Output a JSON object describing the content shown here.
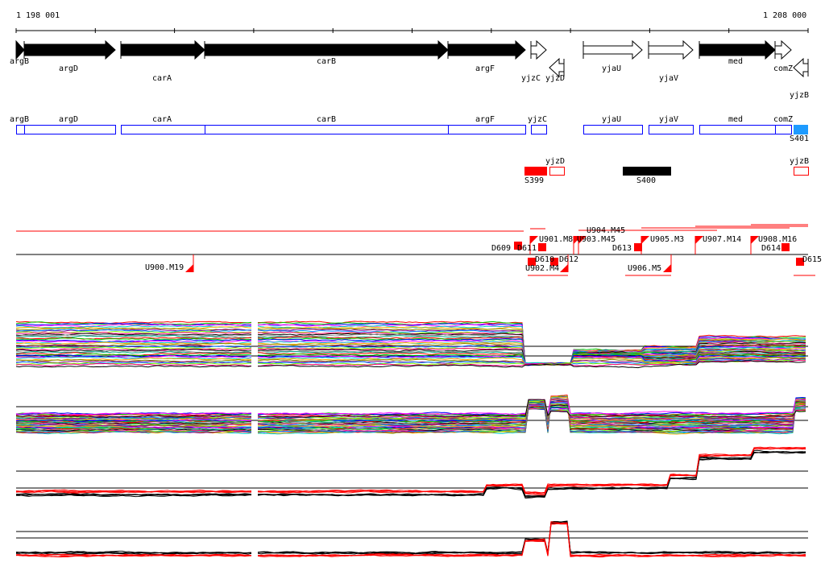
{
  "ruler": {
    "start": "1 198 001",
    "end": "1 208 000"
  },
  "genes": [
    {
      "name": "argB",
      "strand": "+",
      "filled": true
    },
    {
      "name": "argD",
      "strand": "+",
      "filled": true
    },
    {
      "name": "carA",
      "strand": "+",
      "filled": true
    },
    {
      "name": "carB",
      "strand": "+",
      "filled": true
    },
    {
      "name": "argF",
      "strand": "+",
      "filled": true
    },
    {
      "name": "yjzC",
      "strand": "+",
      "filled": false
    },
    {
      "name": "yjzD",
      "strand": "-",
      "filled": false
    },
    {
      "name": "yjaU",
      "strand": "+",
      "filled": false
    },
    {
      "name": "yjaV",
      "strand": "+",
      "filled": false
    },
    {
      "name": "med",
      "strand": "+",
      "filled": true
    },
    {
      "name": "comZ",
      "strand": "+",
      "filled": false
    },
    {
      "name": "yjzB",
      "strand": "-",
      "filled": false
    }
  ],
  "annotation_boxes": [
    "argB",
    "argD",
    "carA",
    "carB",
    "argF",
    "yjzC",
    "yjaU",
    "yjaV",
    "med",
    "comZ"
  ],
  "segments": {
    "s401": "S401",
    "s399": "S399",
    "s400": "S400",
    "yjzD": "yjzD",
    "yjzB": "yjzB"
  },
  "features": {
    "above": [
      "D609",
      "D611",
      "U901.M8",
      "U903.M45",
      "U904.M45",
      "D613",
      "U905.M3",
      "U907.M14",
      "U908.M16",
      "D614"
    ],
    "below": [
      "U900.M19",
      "D610",
      "D612",
      "U902.M4",
      "U906.M5",
      "D615"
    ]
  },
  "colors": {
    "gene_box": "#0000ff",
    "segment_red": "#ff0000",
    "segment_blue": "#1e9bff",
    "black": "#000000"
  }
}
